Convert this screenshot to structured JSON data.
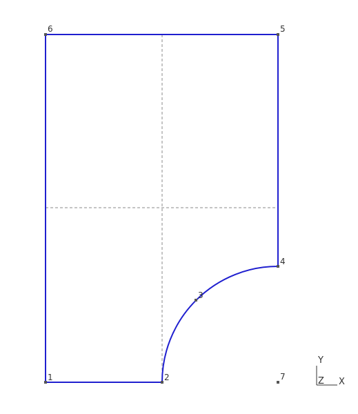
{
  "colors": {
    "outline": "#1f1fcf",
    "centerline": "#8a8a8a",
    "point": "#555555",
    "background": "#ffffff"
  },
  "points": [
    {
      "id": "1",
      "label": "1"
    },
    {
      "id": "2",
      "label": "2"
    },
    {
      "id": "3",
      "label": "3"
    },
    {
      "id": "4",
      "label": "4"
    },
    {
      "id": "5",
      "label": "5"
    },
    {
      "id": "6",
      "label": "6"
    },
    {
      "id": "7",
      "label": "7"
    }
  ],
  "axis_triad": {
    "y_label": "Y",
    "z_label": "Z",
    "x_label": "X"
  }
}
